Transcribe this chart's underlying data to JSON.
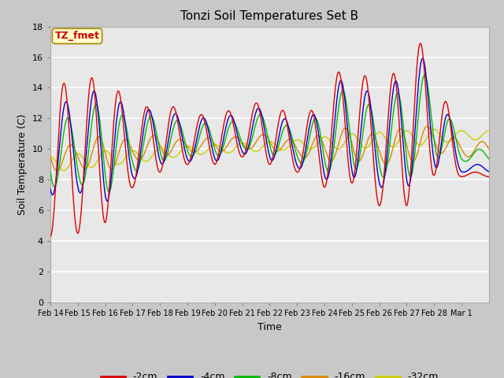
{
  "title": "Tonzi Soil Temperatures Set B",
  "xlabel": "Time",
  "ylabel": "Soil Temperature (C)",
  "annotation": "TZ_fmet",
  "annotation_color": "#cc0000",
  "annotation_bg": "#ffffcc",
  "annotation_border": "#aa8800",
  "ylim": [
    0,
    18
  ],
  "yticks": [
    0,
    2,
    4,
    6,
    8,
    10,
    12,
    14,
    16,
    18
  ],
  "fig_bg": "#c8c8c8",
  "plot_bg": "#e8e8e8",
  "series_colors": [
    "#dd0000",
    "#0000cc",
    "#00bb00",
    "#dd8800",
    "#cccc00"
  ],
  "series_labels": [
    "-2cm",
    "-4cm",
    "-8cm",
    "-16cm",
    "-32cm"
  ],
  "x_tick_labels": [
    "Feb 14",
    "Feb 15",
    "Feb 16",
    "Feb 17",
    "Feb 18",
    "Feb 19",
    "Feb 20",
    "Feb 21",
    "Feb 22",
    "Feb 23",
    "Feb 24",
    "Feb 25",
    "Feb 26",
    "Feb 27",
    "Feb 28",
    "Mar 1"
  ],
  "n_days": 16
}
